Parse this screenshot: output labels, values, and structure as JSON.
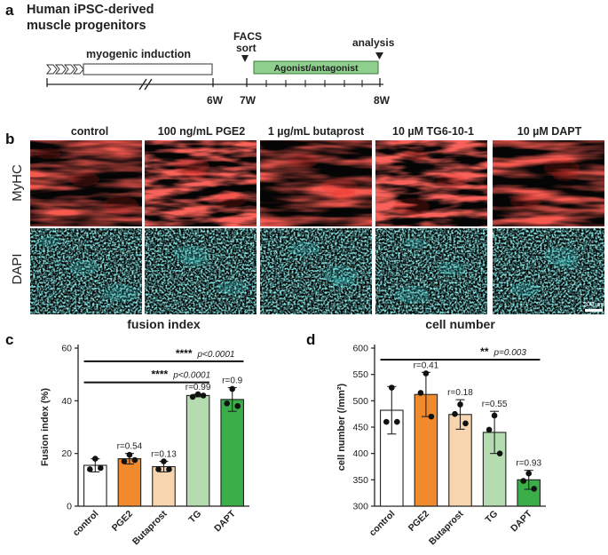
{
  "panel_letters": {
    "a": "a",
    "b": "b",
    "c": "c",
    "d": "d"
  },
  "timeline": {
    "title_line1": "Human iPSC-derived",
    "title_line2": "muscle progenitors",
    "induction_label": "myogenic induction",
    "facs_line1": "FACS",
    "facs_line2": "sort",
    "analysis_label": "analysis",
    "treatment_label": "Agonist/antagonist",
    "week_6": "6W",
    "week_7": "7W",
    "week_8": "8W",
    "colors": {
      "treatment_fill": "#8fd08f",
      "treatment_stroke": "#3a7a3a"
    }
  },
  "micrographs": {
    "conditions": [
      "control",
      "100 ng/mL PGE2",
      "1 µg/mL butaprost",
      "10 µM TG6-10-1",
      "10 µM DAPT"
    ],
    "rows": [
      "MyHC",
      "DAPI"
    ],
    "scale_bar": "200 µm",
    "colors": {
      "myhc": "#e8201c",
      "dapi": "#3fd0d0"
    }
  },
  "chart_data": [
    {
      "type": "bar",
      "title": "fusion index",
      "ylabel": "Fusion index (%)",
      "categories": [
        "control",
        "PGE2",
        "Butaprost",
        "TG",
        "DAPT"
      ],
      "values": [
        15.5,
        18,
        15,
        42,
        40.5
      ],
      "error": [
        2.5,
        2,
        2,
        0.5,
        4.5
      ],
      "points": [
        [
          18,
          14,
          14.5
        ],
        [
          19.5,
          17,
          17.5
        ],
        [
          17,
          14,
          14
        ],
        [
          42.5,
          41.5,
          42
        ],
        [
          44.5,
          39,
          38
        ]
      ],
      "r_values": [
        "",
        "r=0.54",
        "r=0.13",
        "r=0.99",
        "r=0.9"
      ],
      "ylim": [
        0,
        60
      ],
      "yticks": [
        0,
        20,
        40,
        60
      ],
      "colors": [
        "#ffffff",
        "#f08a2c",
        "#f7d5ae",
        "#b5dcb0",
        "#3bae4a"
      ],
      "significance": [
        {
          "from": 0,
          "to": 4,
          "level": 55,
          "stars": "****",
          "p": "p<0.0001"
        },
        {
          "from": 0,
          "to": 3,
          "level": 47,
          "stars": "****",
          "p": "p<0.0001"
        }
      ]
    },
    {
      "type": "bar",
      "title": "cell number",
      "ylabel": "cell number (/mm²)",
      "categories": [
        "control",
        "PGE2",
        "Butaprost",
        "TG",
        "DAPT"
      ],
      "values": [
        482,
        512,
        474,
        440,
        350
      ],
      "error": [
        45,
        42,
        28,
        40,
        18
      ],
      "points": [
        [
          525,
          460,
          460
        ],
        [
          552,
          515,
          470
        ],
        [
          493,
          475,
          457
        ],
        [
          472,
          445,
          400
        ],
        [
          362,
          348,
          333
        ]
      ],
      "r_values": [
        "",
        "r=0.41",
        "r=0.18",
        "r=0.55",
        "r=0.93"
      ],
      "ylim": [
        300,
        600
      ],
      "yticks": [
        300,
        350,
        400,
        450,
        500,
        550,
        600
      ],
      "colors": [
        "#ffffff",
        "#f08a2c",
        "#f7d5ae",
        "#b5dcb0",
        "#3bae4a"
      ],
      "significance": [
        {
          "from": 0,
          "to": 4,
          "level": 578,
          "stars": "**",
          "p": "p=0.003"
        }
      ]
    }
  ]
}
